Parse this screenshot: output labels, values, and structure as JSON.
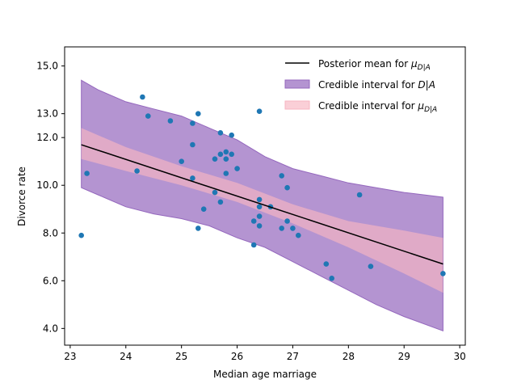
{
  "chart_data": {
    "type": "scatter",
    "xlabel": "Median age marriage",
    "ylabel": "Divorce rate",
    "xlim": [
      22.9,
      30.1
    ],
    "ylim": [
      3.3,
      15.8
    ],
    "xticks": [
      {
        "value": 23,
        "label": "23"
      },
      {
        "value": 24,
        "label": "24"
      },
      {
        "value": 25,
        "label": "25"
      },
      {
        "value": 26,
        "label": "26"
      },
      {
        "value": 27,
        "label": "27"
      },
      {
        "value": 28,
        "label": "28"
      },
      {
        "value": 29,
        "label": "29"
      },
      {
        "value": 30,
        "label": "30"
      }
    ],
    "yticks": [
      {
        "value": 4,
        "label": "4.0"
      },
      {
        "value": 6,
        "label": "6.0"
      },
      {
        "value": 8,
        "label": "8.0"
      },
      {
        "value": 10,
        "label": "10.0"
      },
      {
        "value": 12,
        "label": "12.0"
      },
      {
        "value": 13,
        "label": "13.0"
      },
      {
        "value": 15,
        "label": "15.0"
      }
    ],
    "grid": false,
    "legend": {
      "position": "top-right",
      "entries": [
        {
          "label": "Posterior mean for ",
          "math": "μ",
          "sub": "D|A",
          "kind": "line",
          "color": "#000000"
        },
        {
          "label": "Credible interval for ",
          "math": "D",
          "tail": "|A",
          "kind": "patch",
          "color": "#9467bd"
        },
        {
          "label": "Credible interval for ",
          "math": "μ",
          "sub": "D|A",
          "kind": "patch",
          "color": "#f7b6c2"
        }
      ]
    },
    "colors": {
      "points": "#1f77b4",
      "mean_line": "#000000",
      "interval_D": "#9467bd",
      "interval_mu": "#f7b6c2"
    },
    "mean_line": {
      "x": [
        23.2,
        29.7
      ],
      "y": [
        11.7,
        6.7
      ]
    },
    "interval_D": {
      "x": [
        23.2,
        23.5,
        24,
        24.5,
        25,
        25.5,
        26,
        26.5,
        27,
        27.5,
        28,
        28.5,
        29,
        29.7
      ],
      "lower": [
        9.9,
        9.6,
        9.1,
        8.8,
        8.6,
        8.3,
        7.8,
        7.4,
        6.8,
        6.2,
        5.6,
        5.0,
        4.5,
        3.9
      ],
      "upper": [
        14.4,
        14.0,
        13.5,
        13.2,
        12.9,
        12.4,
        11.9,
        11.2,
        10.7,
        10.4,
        10.1,
        9.9,
        9.7,
        9.5
      ]
    },
    "interval_mu": {
      "x": [
        23.2,
        24,
        25,
        26,
        27,
        28,
        29,
        29.7
      ],
      "lower": [
        11.1,
        10.6,
        10.0,
        9.3,
        8.4,
        7.4,
        6.3,
        5.5
      ],
      "upper": [
        12.4,
        11.6,
        10.8,
        10.1,
        9.2,
        8.5,
        8.1,
        7.8
      ]
    },
    "points": {
      "x": [
        23.2,
        23.3,
        24.2,
        24.3,
        24.4,
        24.8,
        25.0,
        25.2,
        25.2,
        25.2,
        25.3,
        25.3,
        25.4,
        25.6,
        25.6,
        25.7,
        25.7,
        25.7,
        25.8,
        25.8,
        25.8,
        25.9,
        25.9,
        26.0,
        26.3,
        26.3,
        26.4,
        26.4,
        26.4,
        26.4,
        26.4,
        26.6,
        26.8,
        26.8,
        26.9,
        26.9,
        27.0,
        27.1,
        27.6,
        27.7,
        28.2,
        28.4,
        29.7
      ],
      "y": [
        7.9,
        10.5,
        10.6,
        13.7,
        12.9,
        12.7,
        11.0,
        12.6,
        11.7,
        10.3,
        13.0,
        8.2,
        9.0,
        11.1,
        9.7,
        12.2,
        11.3,
        9.3,
        11.4,
        10.5,
        11.1,
        12.1,
        11.3,
        10.7,
        8.5,
        7.5,
        9.4,
        9.1,
        8.7,
        8.3,
        13.1,
        9.1,
        10.4,
        8.2,
        8.5,
        9.9,
        8.2,
        7.9,
        6.7,
        6.1,
        9.6,
        6.6,
        6.3
      ]
    }
  }
}
